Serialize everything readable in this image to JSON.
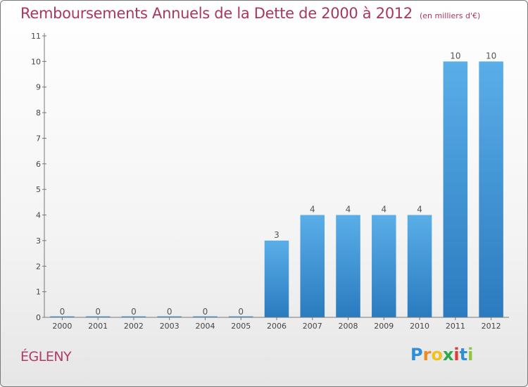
{
  "chart_data": {
    "type": "bar",
    "title": "Remboursements Annuels de la Dette de 2000 à 2012",
    "unit_note": "(en milliers d'€)",
    "categories": [
      "2000",
      "2001",
      "2002",
      "2003",
      "2004",
      "2005",
      "2006",
      "2007",
      "2008",
      "2009",
      "2010",
      "2011",
      "2012"
    ],
    "values": [
      0,
      0,
      0,
      0,
      0,
      0,
      3,
      4,
      4,
      4,
      4,
      10,
      10
    ],
    "ylim": [
      0,
      11
    ],
    "yticks": [
      "0",
      "1",
      "2",
      "3",
      "4",
      "5",
      "6",
      "7",
      "8",
      "9",
      "10",
      "11"
    ],
    "grid": false,
    "xlabel": "",
    "ylabel": "",
    "bar_color_top": "#5aaee8",
    "bar_color_bottom": "#2a7bbf"
  },
  "commune_name": "ÉGLENY",
  "logo": {
    "letters": [
      "P",
      "r",
      "o",
      "x",
      "i",
      "t",
      "i"
    ],
    "colors": [
      "#2f8fd6",
      "#f08a1c",
      "#f0c21c",
      "#2ea84a",
      "#e03a3a",
      "#2f8fd6",
      "#8cc63f"
    ]
  },
  "colors": {
    "title": "#a8375f",
    "axis": "#555555"
  }
}
